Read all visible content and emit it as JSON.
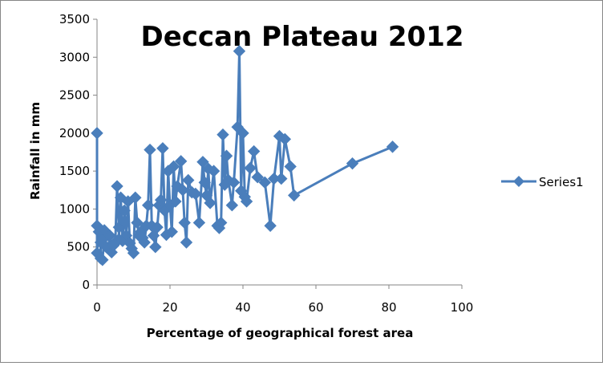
{
  "chart_data": {
    "type": "line",
    "title": "Deccan Plateau 2012",
    "xlabel": "Percentage of geographical forest area",
    "ylabel": "Rainfall in mm",
    "xlim": [
      0,
      100
    ],
    "ylim": [
      0,
      3500
    ],
    "xticks": [
      "0",
      "20",
      "40",
      "60",
      "80",
      "100"
    ],
    "yticks": [
      "0",
      "500",
      "1000",
      "1500",
      "2000",
      "2500",
      "3000",
      "3500"
    ],
    "grid": false,
    "legend_position": "right",
    "series": [
      {
        "name": "Series1",
        "color": "#4a7ebb",
        "marker": "diamond",
        "points": [
          [
            0,
            2000
          ],
          [
            0,
            780
          ],
          [
            0,
            420
          ],
          [
            0.5,
            700
          ],
          [
            1,
            560
          ],
          [
            1,
            350
          ],
          [
            1.5,
            330
          ],
          [
            2,
            620
          ],
          [
            2,
            720
          ],
          [
            2.5,
            500
          ],
          [
            3,
            480
          ],
          [
            3.5,
            650
          ],
          [
            4,
            430
          ],
          [
            4.5,
            520
          ],
          [
            5,
            560
          ],
          [
            5.5,
            1300
          ],
          [
            6,
            760
          ],
          [
            6,
            600
          ],
          [
            6.5,
            1150
          ],
          [
            7,
            580
          ],
          [
            7.5,
            980
          ],
          [
            8,
            650
          ],
          [
            8.5,
            1100
          ],
          [
            9,
            550
          ],
          [
            9.5,
            480
          ],
          [
            10,
            420
          ],
          [
            10.5,
            1150
          ],
          [
            11,
            820
          ],
          [
            11.5,
            650
          ],
          [
            12,
            700
          ],
          [
            12.5,
            620
          ],
          [
            13,
            560
          ],
          [
            13.5,
            780
          ],
          [
            14,
            1050
          ],
          [
            14.5,
            1780
          ],
          [
            15,
            780
          ],
          [
            15.5,
            650
          ],
          [
            16,
            500
          ],
          [
            16.5,
            760
          ],
          [
            17,
            1050
          ],
          [
            17.5,
            1120
          ],
          [
            18,
            1800
          ],
          [
            18.5,
            980
          ],
          [
            19,
            660
          ],
          [
            19.5,
            1500
          ],
          [
            20,
            1050
          ],
          [
            20.5,
            700
          ],
          [
            21,
            1560
          ],
          [
            21.5,
            1100
          ],
          [
            22,
            1300
          ],
          [
            23,
            1630
          ],
          [
            23.5,
            1250
          ],
          [
            24,
            820
          ],
          [
            24.5,
            560
          ],
          [
            25,
            1380
          ],
          [
            26,
            1220
          ],
          [
            27,
            1200
          ],
          [
            28,
            820
          ],
          [
            29,
            1620
          ],
          [
            29.5,
            1350
          ],
          [
            30,
            1180
          ],
          [
            30.5,
            1530
          ],
          [
            31,
            1080
          ],
          [
            32,
            1500
          ],
          [
            33,
            780
          ],
          [
            33.5,
            750
          ],
          [
            34,
            820
          ],
          [
            34.5,
            1980
          ],
          [
            35,
            1320
          ],
          [
            35.5,
            1700
          ],
          [
            36,
            1380
          ],
          [
            37,
            1050
          ],
          [
            37.5,
            1350
          ],
          [
            38.5,
            2080
          ],
          [
            39,
            3080
          ],
          [
            39.5,
            1240
          ],
          [
            40,
            2000
          ],
          [
            40.5,
            1160
          ],
          [
            41,
            1100
          ],
          [
            42,
            1540
          ],
          [
            43,
            1760
          ],
          [
            44,
            1420
          ],
          [
            46,
            1350
          ],
          [
            47.5,
            780
          ],
          [
            48.5,
            1400
          ],
          [
            50,
            1960
          ],
          [
            50.5,
            1400
          ],
          [
            51.5,
            1920
          ],
          [
            53,
            1560
          ],
          [
            54,
            1180
          ],
          [
            70,
            1600
          ],
          [
            81,
            1820
          ]
        ]
      }
    ]
  }
}
